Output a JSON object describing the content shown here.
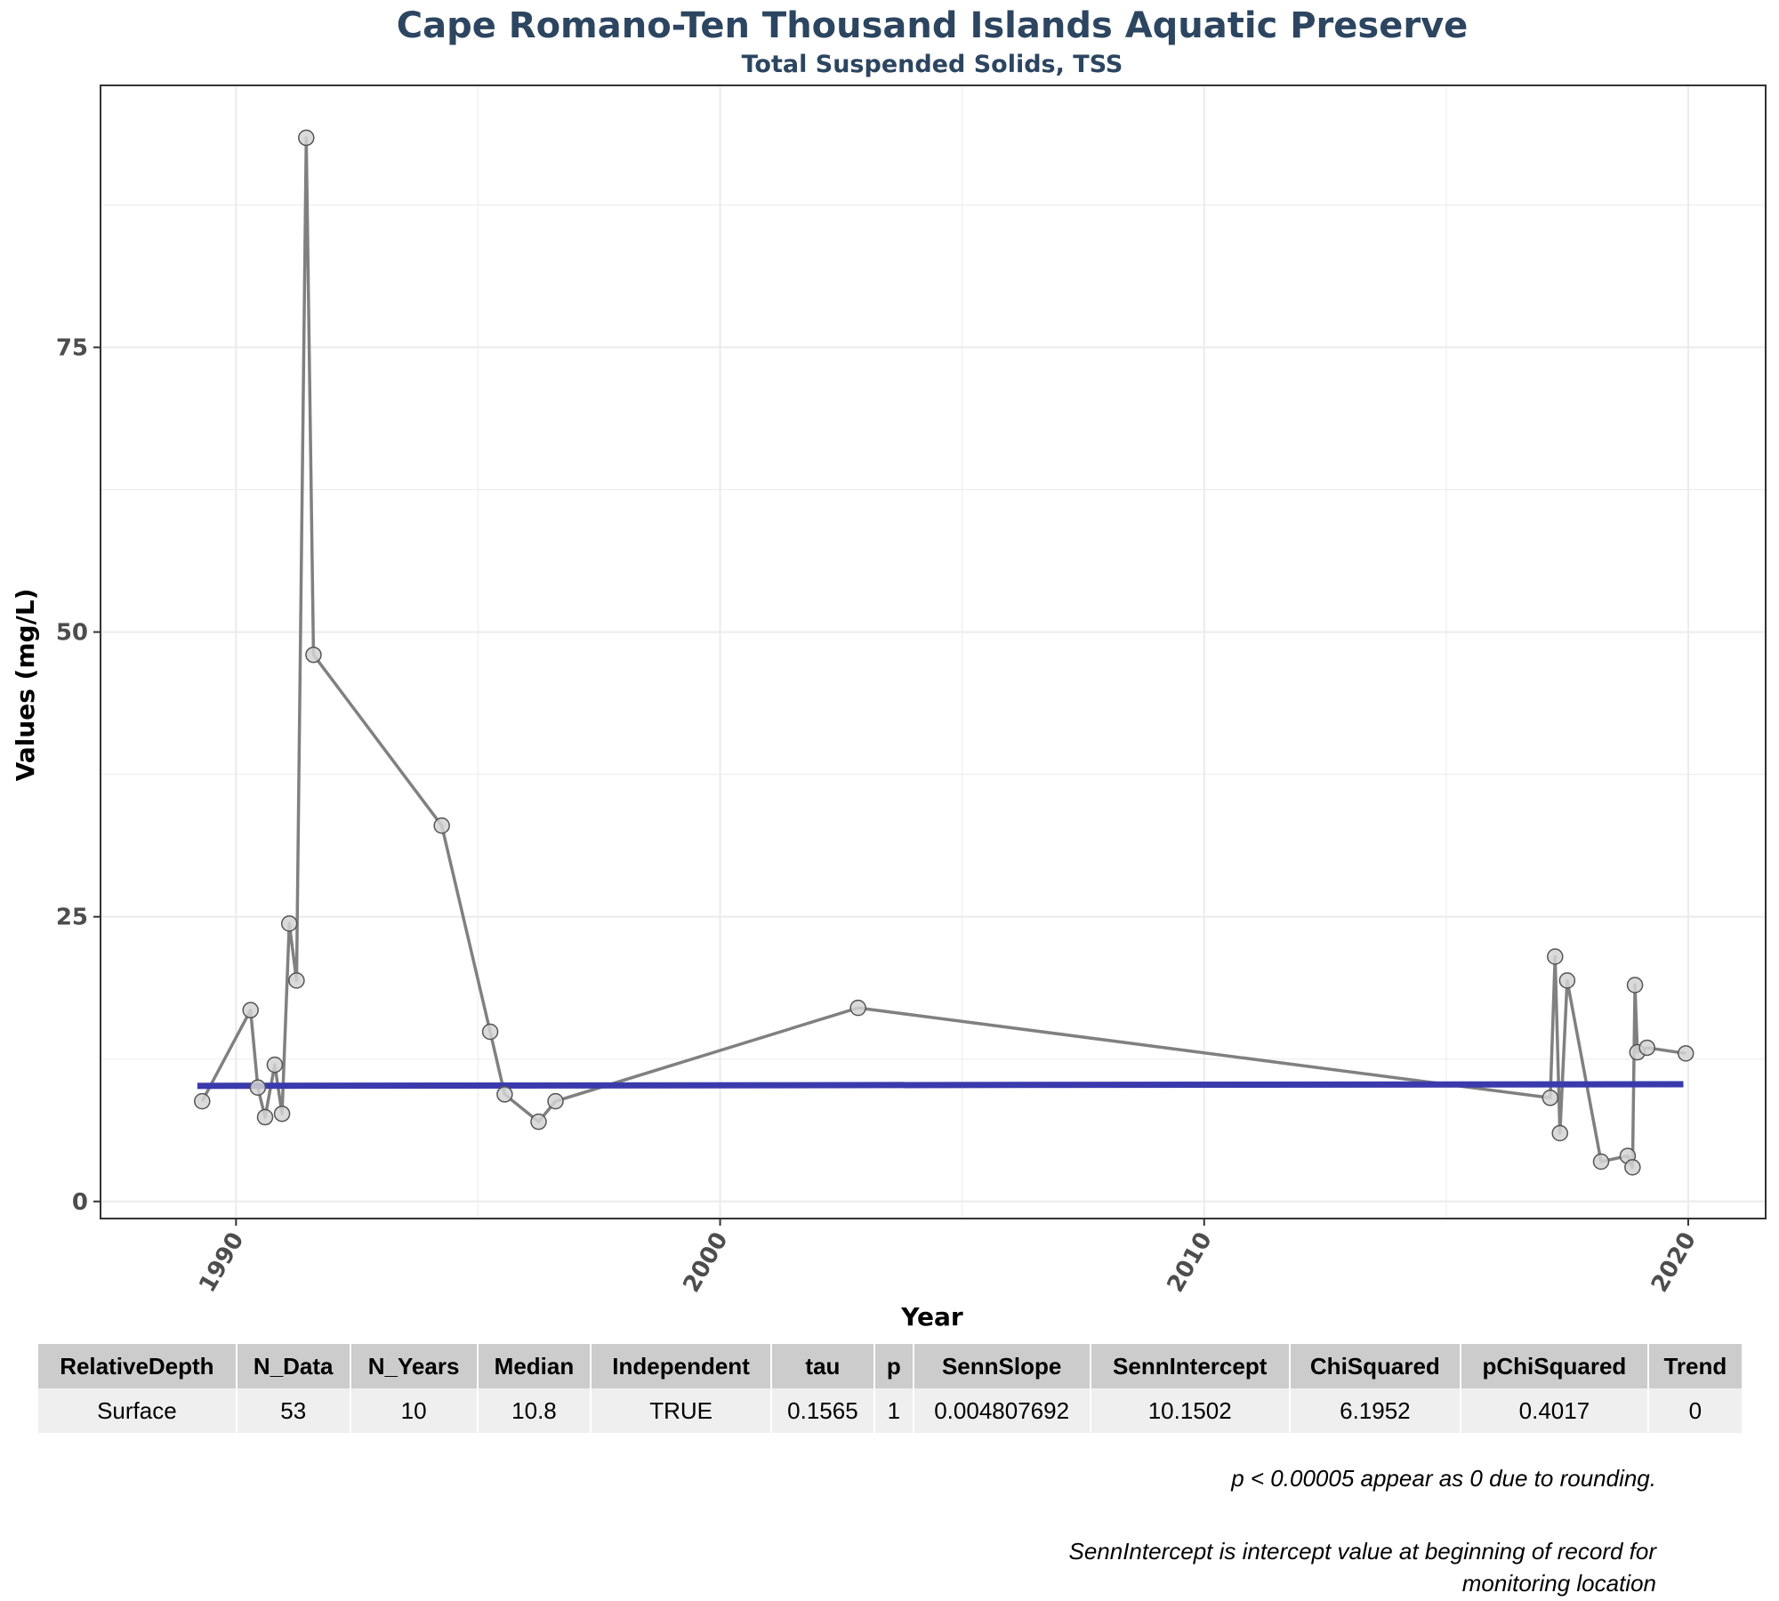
{
  "chart_data": {
    "type": "line",
    "title": "Cape Romano-Ten Thousand Islands Aquatic Preserve",
    "subtitle": "Total Suspended Solids, TSS",
    "xlabel": "Year",
    "ylabel": "Values (mg/L)",
    "xlim": [
      1987.2,
      2021.6
    ],
    "ylim": [
      -1.5,
      98
    ],
    "x_ticks": [
      1990,
      2000,
      2010,
      2020
    ],
    "y_ticks": [
      0,
      25,
      50,
      75
    ],
    "grid": true,
    "series": [
      {
        "color": "#808080",
        "points": [
          {
            "x": 1989.3,
            "y": 8.8
          },
          {
            "x": 1990.3,
            "y": 16.8
          },
          {
            "x": 1990.45,
            "y": 10.0
          },
          {
            "x": 1990.6,
            "y": 7.4
          },
          {
            "x": 1990.8,
            "y": 12.0
          },
          {
            "x": 1990.95,
            "y": 7.7
          },
          {
            "x": 1991.1,
            "y": 24.4
          },
          {
            "x": 1991.25,
            "y": 19.4
          },
          {
            "x": 1991.45,
            "y": 93.4
          },
          {
            "x": 1991.6,
            "y": 48.0
          },
          {
            "x": 1994.25,
            "y": 33.0
          },
          {
            "x": 1995.25,
            "y": 14.9
          },
          {
            "x": 1995.55,
            "y": 9.4
          },
          {
            "x": 1996.25,
            "y": 7.0
          },
          {
            "x": 1996.6,
            "y": 8.8
          },
          {
            "x": 2002.85,
            "y": 17.0
          },
          {
            "x": 2017.15,
            "y": 9.1
          },
          {
            "x": 2017.25,
            "y": 21.5
          },
          {
            "x": 2017.35,
            "y": 6.0
          },
          {
            "x": 2017.5,
            "y": 19.4
          },
          {
            "x": 2018.2,
            "y": 3.5
          },
          {
            "x": 2018.75,
            "y": 4.0
          },
          {
            "x": 2018.85,
            "y": 3.0
          },
          {
            "x": 2018.9,
            "y": 19.0
          },
          {
            "x": 2018.95,
            "y": 13.1
          },
          {
            "x": 2019.15,
            "y": 13.5
          },
          {
            "x": 2019.95,
            "y": 13.0
          }
        ]
      }
    ],
    "trend_line": {
      "color": "#3a3aad",
      "x_start": 1989.2,
      "x_end": 2019.9,
      "intercept": 10.1502,
      "slope": 0.004807692
    }
  },
  "table": {
    "headers": [
      "RelativeDepth",
      "N_Data",
      "N_Years",
      "Median",
      "Independent",
      "tau",
      "p",
      "SennSlope",
      "SennIntercept",
      "ChiSquared",
      "pChiSquared",
      "Trend"
    ],
    "rows": [
      [
        "Surface",
        "53",
        "10",
        "10.8",
        "TRUE",
        "0.1565",
        "1",
        "0.004807692",
        "10.1502",
        "6.1952",
        "0.4017",
        "0"
      ]
    ]
  },
  "notes": {
    "note1": "p < 0.00005 appear as 0 due to rounding.",
    "note2": "SennIntercept is intercept value at beginning of record for monitoring location"
  }
}
